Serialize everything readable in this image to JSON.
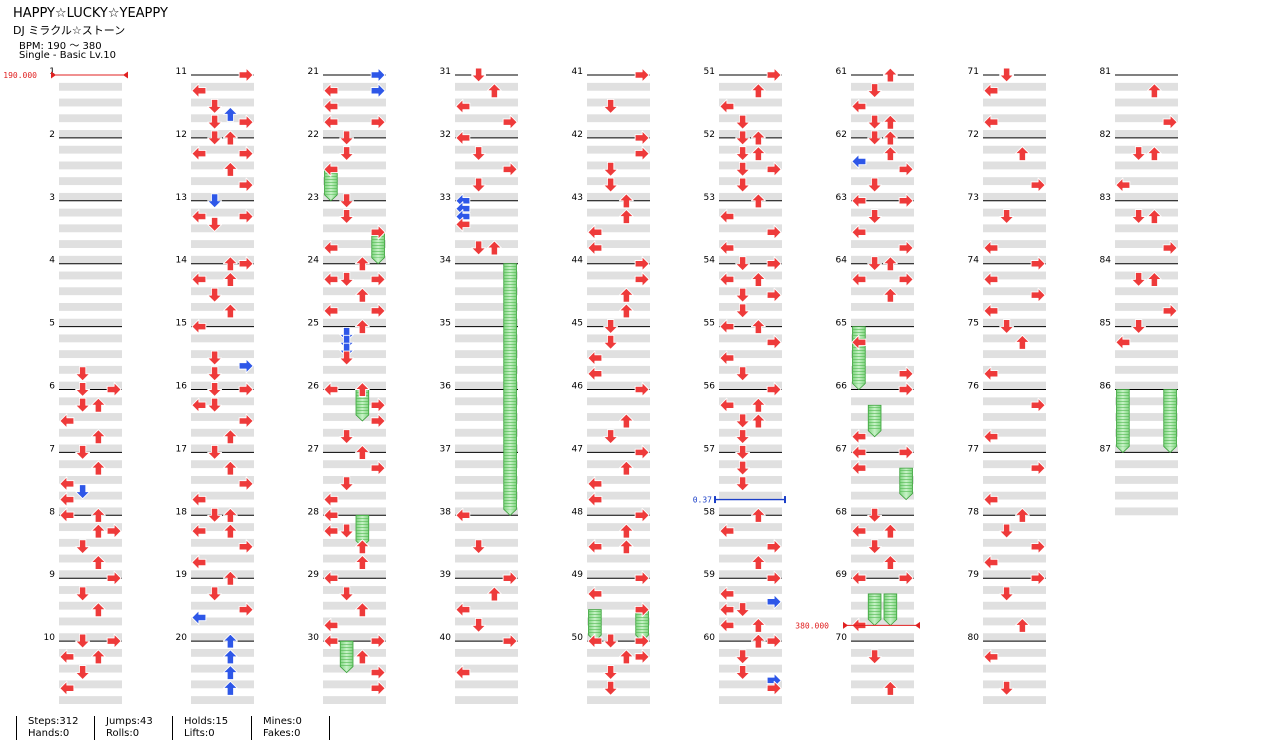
{
  "header": {
    "title": "HAPPY☆LUCKY☆YEAPPY",
    "artist": "DJ ミラクル☆ストーン",
    "bpm": "BPM: 190 ～ 380",
    "mode": "Single - Basic  Lv.10"
  },
  "colors": {
    "tap": "#ee3a3a",
    "tap_blue": "#2e57e8",
    "hold": "#9be29b",
    "hold_stroke": "#3aa03a",
    "band": "#e0e0e0",
    "bpm_marker": "#e02020",
    "stop_marker": "#1b3fc8"
  },
  "chart_data": {
    "type": "step-chart",
    "measures": 87,
    "columns": [
      "left",
      "down",
      "up",
      "right"
    ],
    "bpm_changes": [
      {
        "measure": 1,
        "value": "190.000"
      },
      {
        "measure": 69.75,
        "value": "380.000"
      }
    ],
    "stops": [
      {
        "measure": 57.75,
        "value": "0.37"
      }
    ],
    "notes": [
      [
        5.75,
        1,
        2
      ],
      [
        6,
        1,
        2
      ],
      [
        6,
        3,
        2
      ],
      [
        6.25,
        1,
        2
      ],
      [
        6.25,
        2,
        2
      ],
      [
        6.5,
        0,
        2
      ],
      [
        6.75,
        2,
        2
      ],
      [
        7,
        1,
        2
      ],
      [
        7.25,
        2,
        2
      ],
      [
        7.5,
        0,
        2
      ],
      [
        7.625,
        1,
        4
      ],
      [
        7.75,
        0,
        2
      ],
      [
        8,
        0,
        2
      ],
      [
        8,
        2,
        2
      ],
      [
        8.25,
        2,
        2
      ],
      [
        8.25,
        3,
        2
      ],
      [
        8.5,
        1,
        2
      ],
      [
        8.75,
        2,
        2
      ],
      [
        9,
        3,
        2
      ],
      [
        9.25,
        1,
        2
      ],
      [
        9.5,
        2,
        2
      ],
      [
        10,
        1,
        2
      ],
      [
        10,
        3,
        2
      ],
      [
        10.25,
        0,
        2
      ],
      [
        10.25,
        2,
        2
      ],
      [
        10.5,
        1,
        2
      ],
      [
        10.75,
        0,
        2
      ],
      [
        11,
        3,
        2
      ],
      [
        11.25,
        0,
        2
      ],
      [
        11.5,
        1,
        2
      ],
      [
        11.625,
        2,
        4
      ],
      [
        11.75,
        1,
        2
      ],
      [
        11.75,
        3,
        2
      ],
      [
        12,
        1,
        2
      ],
      [
        12,
        2,
        2
      ],
      [
        12.25,
        0,
        2
      ],
      [
        12.25,
        3,
        2
      ],
      [
        12.5,
        2,
        2
      ],
      [
        12.75,
        3,
        2
      ],
      [
        13,
        1,
        4
      ],
      [
        13.25,
        0,
        2
      ],
      [
        13.25,
        3,
        2
      ],
      [
        13.375,
        1,
        2
      ],
      [
        14,
        2,
        2
      ],
      [
        14,
        3,
        2
      ],
      [
        14.25,
        0,
        2
      ],
      [
        14.25,
        2,
        2
      ],
      [
        14.5,
        1,
        2
      ],
      [
        14.75,
        2,
        2
      ],
      [
        15,
        0,
        2
      ],
      [
        15.5,
        1,
        2
      ],
      [
        15.625,
        3,
        4
      ],
      [
        15.75,
        1,
        2
      ],
      [
        16,
        1,
        2
      ],
      [
        16,
        3,
        2
      ],
      [
        16.25,
        0,
        2
      ],
      [
        16.25,
        1,
        2
      ],
      [
        16.5,
        3,
        2
      ],
      [
        16.75,
        2,
        2
      ],
      [
        17,
        1,
        2
      ],
      [
        17.25,
        2,
        2
      ],
      [
        17.5,
        3,
        2
      ],
      [
        17.75,
        0,
        2
      ],
      [
        18,
        1,
        2
      ],
      [
        18,
        2,
        2
      ],
      [
        18.25,
        0,
        2
      ],
      [
        18.25,
        2,
        2
      ],
      [
        18.5,
        3,
        2
      ],
      [
        18.75,
        0,
        2
      ],
      [
        19,
        2,
        2
      ],
      [
        19.25,
        1,
        2
      ],
      [
        19.5,
        3,
        2
      ],
      [
        19.625,
        0,
        4
      ],
      [
        20,
        2,
        4
      ],
      [
        20.25,
        2,
        4
      ],
      [
        20.5,
        2,
        4
      ],
      [
        20.75,
        2,
        4
      ],
      [
        21,
        3,
        4
      ],
      [
        21.25,
        0,
        2
      ],
      [
        21.25,
        3,
        4
      ],
      [
        21.5,
        0,
        2
      ],
      [
        21.75,
        0,
        2
      ],
      [
        21.75,
        3,
        2
      ],
      [
        22,
        1,
        2
      ],
      [
        22.25,
        1,
        2
      ],
      [
        22.5,
        0,
        2
      ],
      [
        23,
        1,
        2
      ],
      [
        23.25,
        1,
        2
      ],
      [
        23.5,
        3,
        2
      ],
      [
        23.75,
        0,
        2
      ],
      [
        24,
        2,
        2
      ],
      [
        24.25,
        0,
        2
      ],
      [
        24.25,
        1,
        2
      ],
      [
        24.25,
        3,
        2
      ],
      [
        24.5,
        2,
        2
      ],
      [
        24.75,
        0,
        2
      ],
      [
        24.75,
        3,
        2
      ],
      [
        25,
        2,
        2
      ],
      [
        25.125,
        1,
        4
      ],
      [
        25.25,
        1,
        4
      ],
      [
        25.375,
        1,
        4
      ],
      [
        25.5,
        1,
        2
      ],
      [
        26,
        0,
        2
      ],
      [
        26,
        2,
        2
      ],
      [
        26.25,
        3,
        2
      ],
      [
        26.5,
        3,
        2
      ],
      [
        26.75,
        1,
        2
      ],
      [
        27,
        2,
        2
      ],
      [
        27.25,
        3,
        2
      ],
      [
        27.5,
        1,
        2
      ],
      [
        27.75,
        0,
        2
      ],
      [
        28,
        0,
        2
      ],
      [
        28.25,
        0,
        2
      ],
      [
        28.25,
        1,
        2
      ],
      [
        28.5,
        2,
        2
      ],
      [
        28.75,
        2,
        2
      ],
      [
        29,
        0,
        2
      ],
      [
        29.25,
        1,
        2
      ],
      [
        29.5,
        2,
        2
      ],
      [
        29.75,
        0,
        2
      ],
      [
        30,
        0,
        2
      ],
      [
        30,
        3,
        2
      ],
      [
        30.25,
        2,
        2
      ],
      [
        30.5,
        3,
        2
      ],
      [
        30.75,
        3,
        2
      ],
      [
        31,
        1,
        2
      ],
      [
        31.25,
        2,
        2
      ],
      [
        31.5,
        0,
        2
      ],
      [
        31.75,
        3,
        2
      ],
      [
        32,
        0,
        2
      ],
      [
        32.25,
        1,
        2
      ],
      [
        32.5,
        3,
        2
      ],
      [
        32.75,
        1,
        2
      ],
      [
        33,
        0,
        4
      ],
      [
        33.125,
        0,
        4
      ],
      [
        33.25,
        0,
        4
      ],
      [
        33.375,
        0,
        2
      ],
      [
        33.75,
        1,
        2
      ],
      [
        33.75,
        2,
        2
      ],
      [
        38,
        0,
        2
      ],
      [
        38.5,
        1,
        2
      ],
      [
        39,
        3,
        2
      ],
      [
        39.25,
        2,
        2
      ],
      [
        39.5,
        0,
        2
      ],
      [
        39.75,
        1,
        2
      ],
      [
        40,
        3,
        2
      ],
      [
        40.5,
        0,
        2
      ],
      [
        41,
        3,
        2
      ],
      [
        41.5,
        1,
        2
      ],
      [
        42,
        3,
        2
      ],
      [
        42.25,
        3,
        2
      ],
      [
        42.5,
        1,
        2
      ],
      [
        42.75,
        1,
        2
      ],
      [
        43,
        2,
        2
      ],
      [
        43.25,
        2,
        2
      ],
      [
        43.5,
        0,
        2
      ],
      [
        43.75,
        0,
        2
      ],
      [
        44,
        3,
        2
      ],
      [
        44.25,
        3,
        2
      ],
      [
        44.5,
        2,
        2
      ],
      [
        44.75,
        2,
        2
      ],
      [
        45,
        1,
        2
      ],
      [
        45.25,
        1,
        2
      ],
      [
        45.5,
        0,
        2
      ],
      [
        45.75,
        0,
        2
      ],
      [
        46,
        3,
        2
      ],
      [
        46.5,
        2,
        2
      ],
      [
        46.75,
        1,
        2
      ],
      [
        47,
        3,
        2
      ],
      [
        47.25,
        2,
        2
      ],
      [
        47.5,
        0,
        2
      ],
      [
        47.75,
        0,
        2
      ],
      [
        48,
        3,
        2
      ],
      [
        48.25,
        2,
        2
      ],
      [
        48.5,
        0,
        2
      ],
      [
        48.5,
        2,
        2
      ],
      [
        49,
        3,
        2
      ],
      [
        49.25,
        0,
        2
      ],
      [
        49.5,
        3,
        2
      ],
      [
        50,
        0,
        2
      ],
      [
        50,
        1,
        2
      ],
      [
        50,
        3,
        2
      ],
      [
        50.25,
        2,
        2
      ],
      [
        50.25,
        3,
        2
      ],
      [
        50.5,
        1,
        2
      ],
      [
        50.75,
        1,
        2
      ],
      [
        51,
        3,
        2
      ],
      [
        51.25,
        2,
        2
      ],
      [
        51.5,
        0,
        2
      ],
      [
        51.75,
        1,
        2
      ],
      [
        52,
        1,
        2
      ],
      [
        52,
        2,
        2
      ],
      [
        52.25,
        1,
        2
      ],
      [
        52.25,
        2,
        2
      ],
      [
        52.5,
        1,
        2
      ],
      [
        52.5,
        3,
        2
      ],
      [
        52.75,
        1,
        2
      ],
      [
        53,
        2,
        2
      ],
      [
        53.25,
        0,
        2
      ],
      [
        53.5,
        3,
        2
      ],
      [
        53.75,
        0,
        2
      ],
      [
        54,
        1,
        2
      ],
      [
        54,
        3,
        2
      ],
      [
        54.25,
        0,
        2
      ],
      [
        54.25,
        2,
        2
      ],
      [
        54.5,
        1,
        2
      ],
      [
        54.5,
        3,
        2
      ],
      [
        54.75,
        1,
        2
      ],
      [
        55,
        0,
        2
      ],
      [
        55,
        2,
        2
      ],
      [
        55.25,
        3,
        2
      ],
      [
        55.5,
        0,
        2
      ],
      [
        55.75,
        1,
        2
      ],
      [
        56,
        3,
        2
      ],
      [
        56.25,
        0,
        2
      ],
      [
        56.25,
        2,
        2
      ],
      [
        56.5,
        1,
        2
      ],
      [
        56.5,
        2,
        2
      ],
      [
        56.75,
        1,
        2
      ],
      [
        57,
        1,
        2
      ],
      [
        57.25,
        1,
        2
      ],
      [
        57.5,
        1,
        2
      ],
      [
        58,
        2,
        2
      ],
      [
        58.25,
        0,
        2
      ],
      [
        58.5,
        3,
        2
      ],
      [
        58.75,
        2,
        2
      ],
      [
        59,
        3,
        2
      ],
      [
        59.25,
        0,
        2
      ],
      [
        59.375,
        3,
        4
      ],
      [
        59.5,
        0,
        2
      ],
      [
        59.5,
        1,
        2
      ],
      [
        59.75,
        0,
        2
      ],
      [
        59.75,
        2,
        2
      ],
      [
        60,
        2,
        2
      ],
      [
        60,
        3,
        2
      ],
      [
        60.25,
        1,
        2
      ],
      [
        60.5,
        1,
        2
      ],
      [
        60.625,
        3,
        4
      ],
      [
        60.75,
        3,
        2
      ],
      [
        61,
        2,
        2
      ],
      [
        61.25,
        1,
        2
      ],
      [
        61.5,
        0,
        2
      ],
      [
        61.75,
        1,
        2
      ],
      [
        61.75,
        2,
        2
      ],
      [
        62,
        1,
        2
      ],
      [
        62,
        2,
        2
      ],
      [
        62.25,
        2,
        2
      ],
      [
        62.375,
        0,
        4
      ],
      [
        62.5,
        3,
        2
      ],
      [
        62.75,
        1,
        2
      ],
      [
        63,
        0,
        2
      ],
      [
        63,
        3,
        2
      ],
      [
        63.25,
        1,
        2
      ],
      [
        63.5,
        0,
        2
      ],
      [
        63.75,
        3,
        2
      ],
      [
        64,
        1,
        2
      ],
      [
        64,
        2,
        2
      ],
      [
        64.25,
        0,
        2
      ],
      [
        64.25,
        3,
        2
      ],
      [
        64.5,
        2,
        2
      ],
      [
        65.25,
        0,
        2
      ],
      [
        65.75,
        3,
        2
      ],
      [
        66,
        3,
        2
      ],
      [
        66.75,
        0,
        2
      ],
      [
        67,
        0,
        2
      ],
      [
        67,
        3,
        2
      ],
      [
        67.25,
        0,
        2
      ],
      [
        68,
        1,
        2
      ],
      [
        68.25,
        0,
        2
      ],
      [
        68.25,
        2,
        2
      ],
      [
        68.5,
        1,
        2
      ],
      [
        68.75,
        2,
        2
      ],
      [
        69,
        0,
        2
      ],
      [
        69,
        3,
        2
      ],
      [
        69.75,
        0,
        2
      ],
      [
        70.25,
        1,
        2
      ],
      [
        70.75,
        2,
        2
      ],
      [
        71,
        1,
        2
      ],
      [
        71.25,
        0,
        2
      ],
      [
        71.75,
        0,
        2
      ],
      [
        72.25,
        2,
        2
      ],
      [
        72.75,
        3,
        2
      ],
      [
        73.25,
        1,
        2
      ],
      [
        73.75,
        0,
        2
      ],
      [
        74,
        3,
        2
      ],
      [
        74.25,
        0,
        2
      ],
      [
        74.5,
        3,
        2
      ],
      [
        74.75,
        0,
        2
      ],
      [
        75,
        1,
        2
      ],
      [
        75.25,
        2,
        2
      ],
      [
        75.75,
        0,
        2
      ],
      [
        76.25,
        3,
        2
      ],
      [
        76.75,
        0,
        2
      ],
      [
        77.25,
        3,
        2
      ],
      [
        77.75,
        0,
        2
      ],
      [
        78,
        2,
        2
      ],
      [
        78.25,
        1,
        2
      ],
      [
        78.5,
        3,
        2
      ],
      [
        78.75,
        0,
        2
      ],
      [
        79,
        3,
        2
      ],
      [
        79.25,
        1,
        2
      ],
      [
        79.75,
        2,
        2
      ],
      [
        80.25,
        0,
        2
      ],
      [
        80.75,
        1,
        2
      ],
      [
        81.25,
        2,
        2
      ],
      [
        81.75,
        3,
        2
      ],
      [
        82.25,
        1,
        2
      ],
      [
        82.25,
        2,
        2
      ],
      [
        82.75,
        0,
        2
      ],
      [
        83.25,
        1,
        2
      ],
      [
        83.25,
        2,
        2
      ],
      [
        83.75,
        3,
        2
      ],
      [
        84.25,
        1,
        2
      ],
      [
        84.25,
        2,
        2
      ],
      [
        84.75,
        3,
        2
      ],
      [
        85,
        1,
        2
      ],
      [
        85.25,
        0,
        2
      ]
    ],
    "holds": [
      [
        22.5,
        0,
        0.5
      ],
      [
        23.5,
        3,
        0.5
      ],
      [
        26,
        2,
        0.5
      ],
      [
        28,
        2,
        0.5
      ],
      [
        30,
        1,
        0.5
      ],
      [
        34,
        3,
        4
      ],
      [
        49.5,
        0,
        0.5
      ],
      [
        49.5,
        3,
        0.5
      ],
      [
        65,
        0,
        1
      ],
      [
        66.25,
        1,
        0.5
      ],
      [
        67.25,
        3,
        0.5
      ],
      [
        69.25,
        1,
        0.5
      ],
      [
        69.25,
        2,
        0.5
      ],
      [
        86,
        0,
        1
      ],
      [
        86,
        3,
        1
      ]
    ]
  },
  "stats": [
    {
      "name": "steps",
      "line1": "Steps:312",
      "line2": "Hands:0"
    },
    {
      "name": "jumps",
      "line1": "Jumps:43",
      "line2": "Rolls:0"
    },
    {
      "name": "holds",
      "line1": "Holds:15",
      "line2": "Lifts:0"
    },
    {
      "name": "mines",
      "line1": "Mines:0",
      "line2": "Fakes:0"
    }
  ]
}
